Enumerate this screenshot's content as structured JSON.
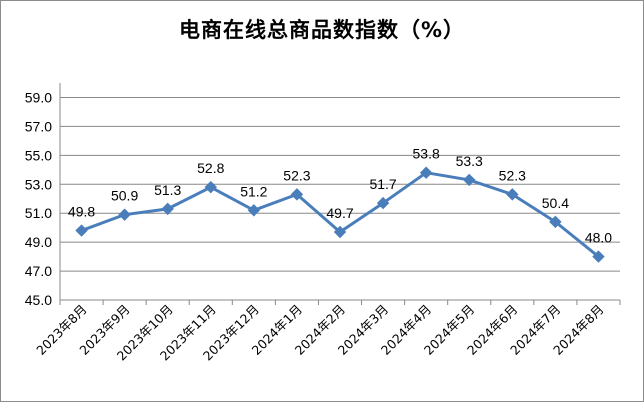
{
  "chart_data": {
    "type": "line",
    "title": "电商在线总商品数指数（%）",
    "categories": [
      "2023年8月",
      "2023年9月",
      "2023年10月",
      "2023年11月",
      "2023年12月",
      "2024年1月",
      "2024年2月",
      "2024年3月",
      "2024年4月",
      "2024年5月",
      "2024年6月",
      "2024年7月",
      "2024年8月"
    ],
    "values": [
      49.8,
      50.9,
      51.3,
      52.8,
      51.2,
      52.3,
      49.7,
      51.7,
      53.8,
      53.3,
      52.3,
      50.4,
      48.0
    ],
    "value_labels": [
      "49.8",
      "50.9",
      "51.3",
      "52.8",
      "51.2",
      "52.3",
      "49.7",
      "51.7",
      "53.8",
      "53.3",
      "52.3",
      "50.4",
      "48.0"
    ],
    "yticks": [
      "45.0",
      "47.0",
      "49.0",
      "51.0",
      "53.0",
      "55.0",
      "57.0",
      "59.0"
    ],
    "ylim": [
      45,
      60
    ],
    "grid": true,
    "legend": "none",
    "colors": {
      "line": "#4a7ebb",
      "marker": "#4a7ebb",
      "grid": "#888888",
      "axis": "#888888"
    }
  }
}
